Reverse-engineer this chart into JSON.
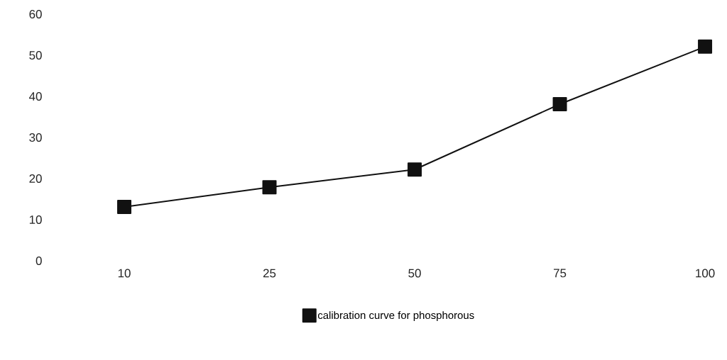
{
  "chart_data": {
    "type": "line",
    "categories": [
      "10",
      "25",
      "50",
      "75",
      "100"
    ],
    "series": [
      {
        "name": "calibration curve for phosphorous",
        "color": "#111111",
        "values": [
          13.1,
          17.9,
          22.2,
          38.1,
          52.1
        ]
      }
    ],
    "ylim": [
      0,
      60
    ],
    "yticks": [
      0,
      10,
      20,
      30,
      40,
      50,
      60
    ],
    "grid": false,
    "legend": "bottom",
    "marker": "square",
    "line_style": "solid"
  }
}
